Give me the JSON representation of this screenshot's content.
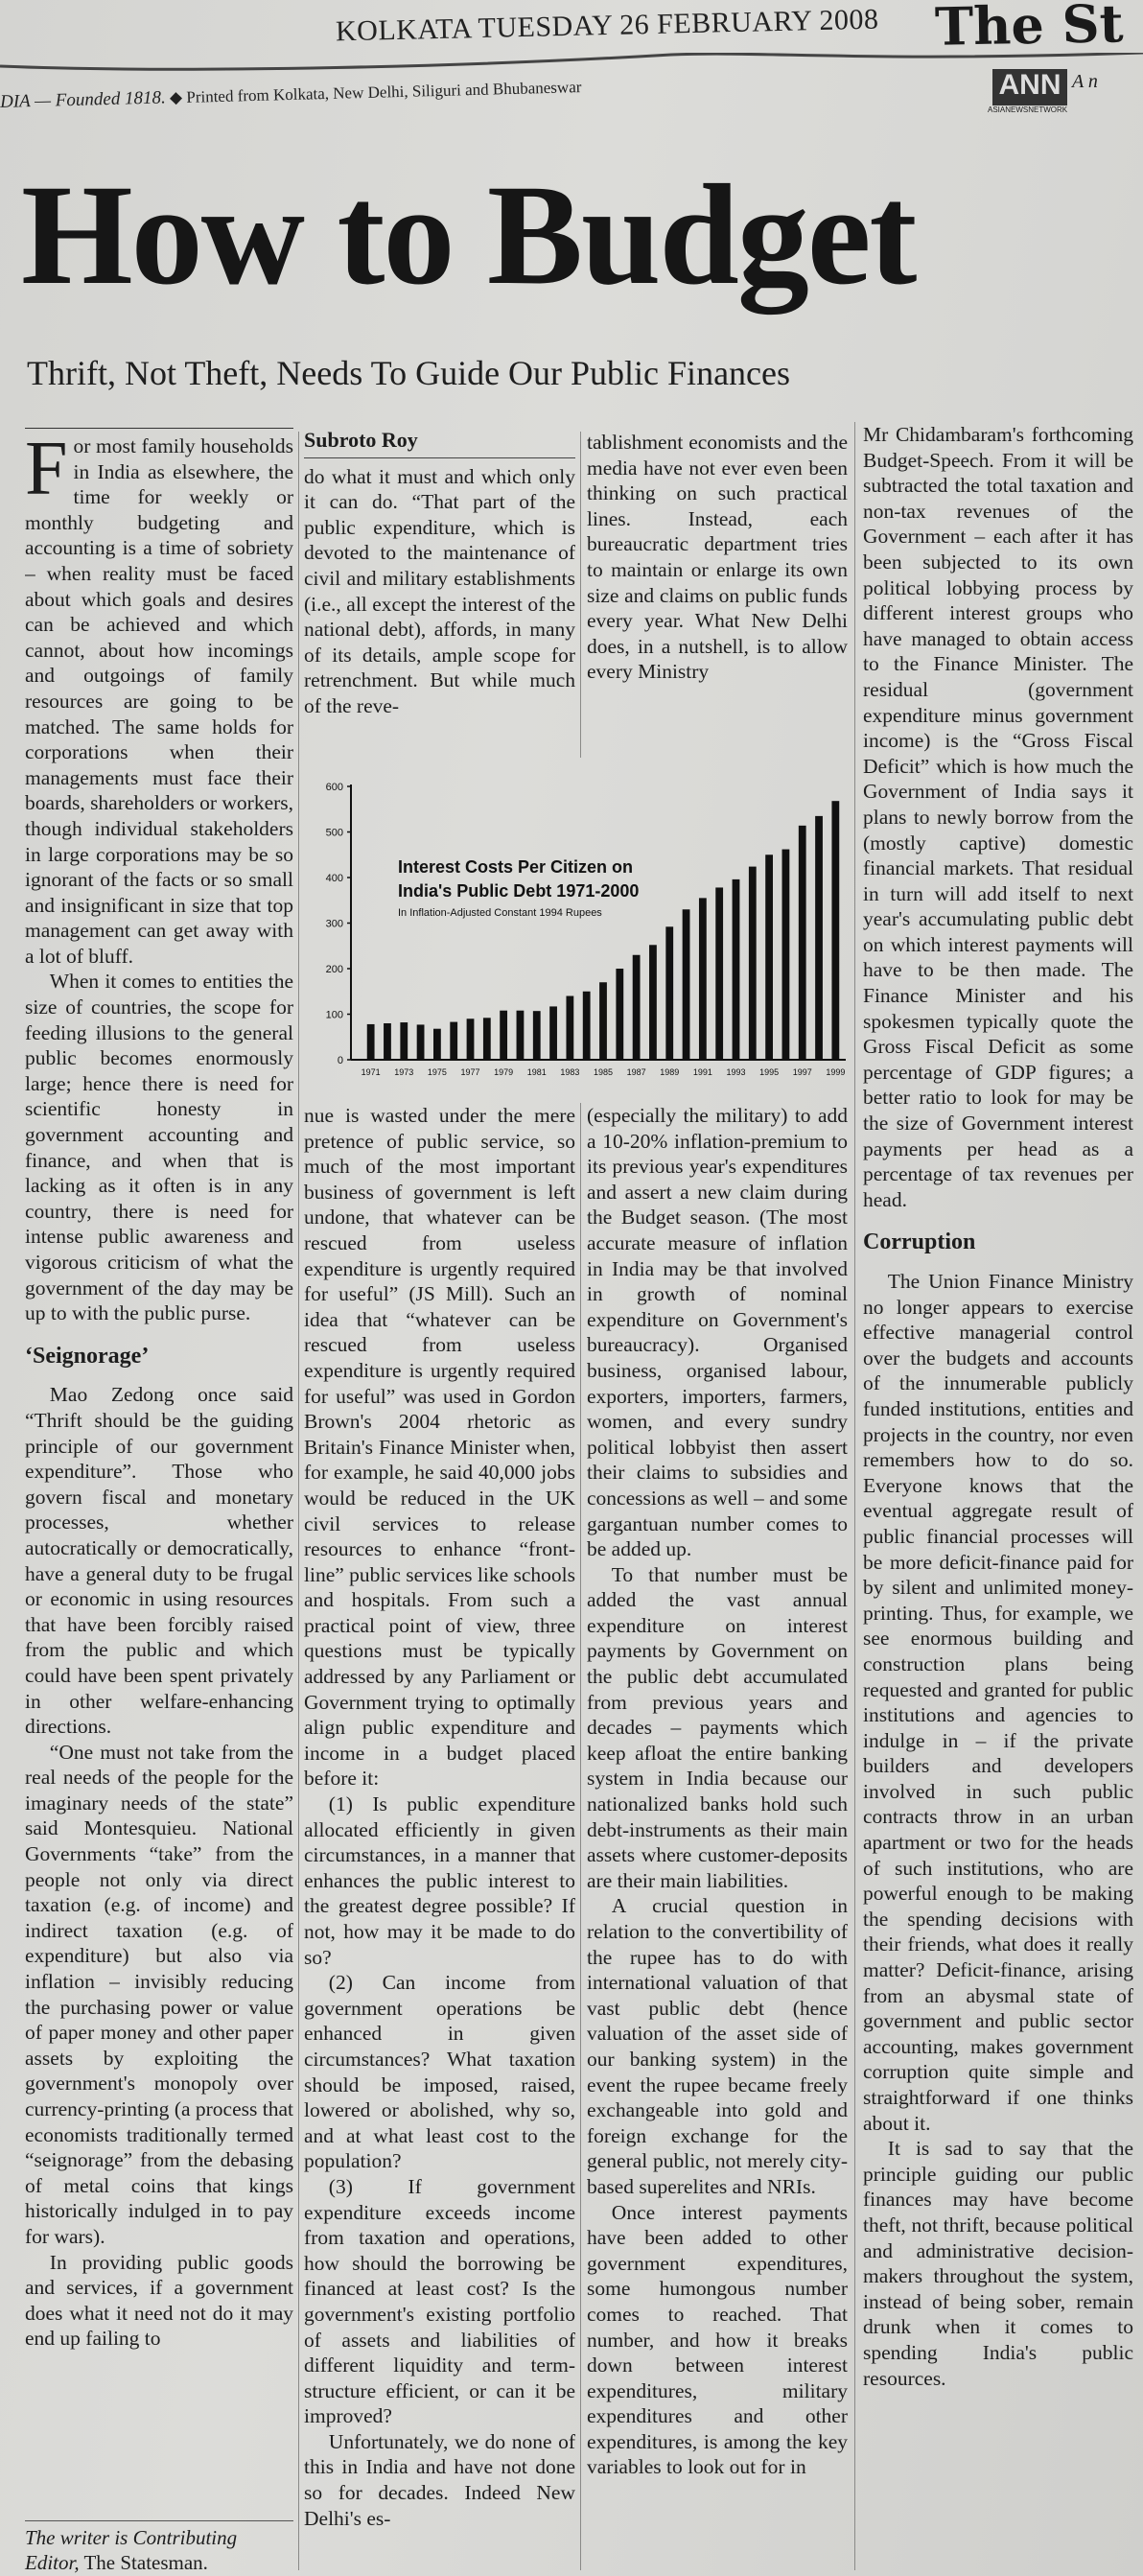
{
  "masthead": {
    "dateline": "KOLKATA TUESDAY 26 FEBRUARY 2008",
    "logo": "The St",
    "founded": "DIA — Founded 1818.",
    "printed_from": "Printed from Kolkata, New Delhi, Siliguri and Bhubaneswar",
    "ann_logo": "ANN",
    "ann_sub": "ASIANEWSNETWORK",
    "ann_tail": "A n"
  },
  "article": {
    "headline": "How to Budget",
    "subhead": "Thrift, Not Theft, Needs To Guide Our Public Finances",
    "byline": "Subroto Roy",
    "dropcap": "F",
    "col1": {
      "p": [
        "or most family households in India as elsewhere, the time for weekly or monthly budgeting and accounting is a time of sobriety – when reality must be faced about which goals and desires can be achieved and which cannot, about how incomings and outgoings of family resources are going to be matched. The same holds for corporations when their managements must face their boards, shareholders or workers, though individual stakeholders in large corporations may be so ignorant of the facts or so small and insignificant in size that top management can get away with a lot of bluff.",
        "When it comes to entities the size of countries, the scope for feeding illusions to the general public becomes enormously large; hence there is need for scientific honesty in government accounting and finance, and when that is lacking as it often is in any country, there is need for intense public awareness and vigorous criticism of what the government of the day may be up to with the public purse."
      ],
      "heading": "‘Seignorage’",
      "p2": [
        "Mao Zedong once said “Thrift should be the guiding principle of our government expenditure”. Those who govern fiscal and monetary processes, whether autocratically or democratically, have a general duty to be frugal or economic in using resources that have been forcibly raised from the public and which could have been spent privately in other welfare-enhancing directions.",
        "“One must not take from the real needs of the people for the imaginary needs of the state” said Montesquieu. National Governments “take” from the people not only via direct taxation (e.g. of income) and indirect taxation (e.g. of expenditure) but also via inflation – invisibly reducing the purchasing power or value of paper money and other paper assets by exploiting the government's monopoly over currency-printing (a process that economists traditionally termed “seignorage” from the debasing of metal coins that kings historically indulged in to pay for wars).",
        "In providing public goods and services, if a government does what it need not do it may end up failing to"
      ]
    },
    "col2_top": "do what it must and which only it can do. “That part of the public expenditure, which is devoted to the maintenance of civil and military establishments (i.e., all except the interest of the national debt), affords, in many of its details, ample scope for retrenchment. But while much of the reve-",
    "col3_top": "tablishment economists and the media have not ever even been thinking on such practical lines. Instead, each bureaucratic department tries to maintain or enlarge its own size and claims on public funds every year. What New Delhi does, in a nutshell, is to allow every Ministry",
    "col2_bottom": [
      "nue is wasted under the mere pretence of public service, so much of the most important business of government is left undone, that whatever can be rescued from useless expenditure is urgently required for useful” (JS Mill). Such an idea that “whatever can be rescued from useless expenditure is urgently required for useful” was used in Gordon Brown's 2004 rhetoric as Britain's Finance Minister when, for example, he said 40,000 jobs would be reduced in the UK civil services to release resources to enhance “front-line” public services like schools and hospitals. From such a practical point of view, three questions must be typically addressed by any Parliament or Government trying to optimally align public expenditure and income in a budget placed before it:",
      "(1) Is public expenditure allocated efficiently in given circumstances, in a manner that enhances the public interest to the greatest degree possible? If not, how may it be made to do so?",
      "(2) Can income from government operations be enhanced in given circumstances? What taxation should be imposed, raised, lowered or abolished, why so, and at what least cost to the population?",
      "(3) If government expenditure exceeds income from taxation and operations, how should the borrowing be financed at least cost? Is the government's existing portfolio of assets and liabilities of different liquidity and term-structure efficient, or can it be improved?",
      "Unfortunately, we do none of this in India and have not done so for decades. Indeed New Delhi's es-"
    ],
    "col3_bottom": [
      "(especially the military) to add a 10-20% inflation-premium to its previous year's expenditures and assert a new claim during the Budget season. (The most accurate measure of inflation in India may be that involved in growth of nominal expenditure on Government's bureaucracy). Organised business, organised labour, exporters, importers, farmers, women, and every sundry political lobbyist then assert their claims to subsidies and concessions as well – and some gargantuan number comes to be added up.",
      "To that number must be added the vast annual expenditure on interest payments by Government on the public debt accumulated from previous years and decades – payments which keep afloat the entire banking system in India because our nationalized banks hold such debt-instruments as their main assets where customer-deposits are their main liabilities.",
      "A crucial question in relation to the convertibility of the rupee has to do with international valuation of that vast public debt (hence valuation of the asset side of our banking system) in the event the rupee became freely exchangeable into gold and foreign exchange for the general public, not merely city-based superelites and NRIs.",
      "Once interest payments have been added to other government expenditures, some humongous number comes to reached. That number, and how it breaks down between interest expenditures, military expenditures and other expenditures, is among the key variables to look out for in"
    ],
    "col4": {
      "p": [
        "Mr Chidambaram's forthcoming Budget-Speech. From it will be subtracted the total taxation and non-tax revenues of the Government – each after it has been subjected to its own political lobbying process by different interest groups who have managed to obtain access to the Finance Minister. The residual (government expenditure minus government income) is the “Gross Fiscal Deficit” which is how much the Government of India says it plans to newly borrow from the (mostly captive) domestic financial markets. That residual in turn will add itself to next year's accumulating public debt on which interest payments will have to be then made. The Finance Minister and his spokesmen typically quote the Gross Fiscal Deficit as some percentage of GDP figures; a better ratio to look for may be the size of Government interest payments per head as a percentage of tax revenues per head."
      ],
      "heading": "Corruption",
      "p2": [
        "The Union Finance Ministry no longer appears to exercise effective managerial control over the budgets and accounts of the innumerable publicly funded institutions, entities and projects in the country, nor even remembers how to do so. Everyone knows that the eventual aggregate result of public financial processes will be more deficit-finance paid for by silent and unlimited money-printing. Thus, for example, we see enormous building and construction plans being requested and granted for public institutions and agencies to indulge in – if the private builders and developers involved in such public contracts throw in an urban apartment or two for the heads of such institutions, who are powerful enough to be making the spending decisions with their friends, what does it really matter? Deficit-finance, arising from an abysmal state of government and public sector accounting, makes government corruption quite simple and straightforward if one thinks about it.",
        "It is sad to say that the principle guiding our public finances may have become theft, not thrift, because political and administrative decision-makers throughout the system, instead of being sober, remain drunk when it comes to spending India's public resources."
      ]
    },
    "footer": {
      "italic": "The writer is Contributing Editor,",
      "plain": " The Statesman."
    }
  },
  "chart_data": {
    "type": "bar",
    "title": "Interest Costs Per Citizen on India's Public Debt 1971-2000",
    "subtitle": "In Inflation-Adjusted Constant 1994 Rupees",
    "xlabel": "",
    "ylabel": "",
    "ylim": [
      0,
      600
    ],
    "yticks": [
      0,
      100,
      200,
      300,
      400,
      500,
      600
    ],
    "xtick_labels": [
      "1971",
      "1973",
      "1975",
      "1977",
      "1979",
      "1981",
      "1983",
      "1985",
      "1987",
      "1989",
      "1991",
      "1993",
      "1995",
      "1997",
      "1999"
    ],
    "categories": [
      1971,
      1972,
      1973,
      1974,
      1975,
      1976,
      1977,
      1978,
      1979,
      1980,
      1981,
      1982,
      1983,
      1984,
      1985,
      1986,
      1987,
      1988,
      1989,
      1990,
      1991,
      1992,
      1993,
      1994,
      1995,
      1996,
      1997,
      1998,
      1999
    ],
    "values": [
      78,
      80,
      82,
      77,
      68,
      83,
      90,
      92,
      108,
      108,
      107,
      117,
      140,
      150,
      170,
      200,
      230,
      252,
      292,
      330,
      355,
      378,
      396,
      424,
      450,
      462,
      514,
      535,
      568
    ],
    "bar_color": "#111111",
    "grid": false
  }
}
